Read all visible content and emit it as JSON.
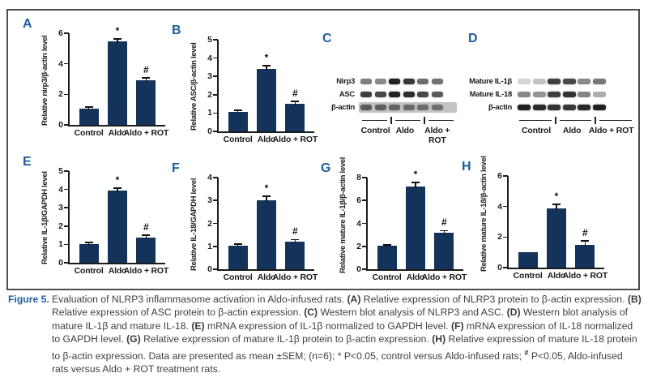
{
  "colors": {
    "bar": "#14335b",
    "panel_letter": "#1d5e9e",
    "figure_label": "#1d5e9e",
    "frame_border": "#4d4d4d"
  },
  "chart_data": [
    {
      "type": "bar",
      "panel": "A",
      "ylabel": "Relative nirp3/β-actin level",
      "categories": [
        "Control",
        "Aldo",
        "Aldo + ROT"
      ],
      "values": [
        1.05,
        5.45,
        2.9
      ],
      "errors": [
        0.08,
        0.15,
        0.15
      ],
      "sig": [
        "",
        "*",
        "#"
      ],
      "ylim": [
        0,
        6
      ],
      "yticks": [
        0,
        2,
        4,
        6
      ]
    },
    {
      "type": "bar",
      "panel": "B",
      "ylabel": "Relative ASC/β-actin level",
      "categories": [
        "Control",
        "Aldo",
        "Aldo + ROT"
      ],
      "values": [
        1.05,
        3.4,
        1.5
      ],
      "errors": [
        0.07,
        0.15,
        0.1
      ],
      "sig": [
        "",
        "*",
        "#"
      ],
      "ylim": [
        0,
        5
      ],
      "yticks": [
        0,
        1,
        2,
        3,
        4,
        5
      ]
    },
    {
      "type": "bar",
      "panel": "E",
      "ylabel": "Relative IL-1β/GAPDH level",
      "categories": [
        "Control",
        "Aldo",
        "Aldo + ROT"
      ],
      "values": [
        1.02,
        3.92,
        1.38
      ],
      "errors": [
        0.04,
        0.12,
        0.08
      ],
      "sig": [
        "",
        "*",
        "#"
      ],
      "ylim": [
        0,
        5
      ],
      "yticks": [
        0,
        1,
        2,
        3,
        4,
        5
      ]
    },
    {
      "type": "bar",
      "panel": "F",
      "ylabel": "Relative IL-18/GAPDH level",
      "categories": [
        "Control",
        "Aldo",
        "Aldo + ROT"
      ],
      "values": [
        1.03,
        3.02,
        1.22
      ],
      "errors": [
        0.04,
        0.13,
        0.05
      ],
      "sig": [
        "",
        "*",
        "#"
      ],
      "ylim": [
        0,
        4
      ],
      "yticks": [
        0,
        1,
        2,
        3,
        4
      ]
    },
    {
      "type": "bar",
      "panel": "G",
      "ylabel": "Relative mature IL-1β/β-actin level",
      "categories": [
        "Control",
        "Aldo",
        "Aldo + ROT"
      ],
      "values": [
        2.02,
        7.2,
        3.2
      ],
      "errors": [
        0.06,
        0.3,
        0.12
      ],
      "sig": [
        "",
        "*",
        "#"
      ],
      "ylim": [
        0,
        8
      ],
      "yticks": [
        0,
        2,
        4,
        6,
        8
      ]
    },
    {
      "type": "bar",
      "panel": "H",
      "ylabel": "Relative mature IL-18/β-actin level",
      "categories": [
        "Control",
        "Aldo",
        "Aldo + ROT"
      ],
      "values": [
        1.0,
        3.9,
        1.5
      ],
      "errors": [
        0,
        0.2,
        0.2
      ],
      "sig": [
        "",
        "*",
        "#"
      ],
      "ylim": [
        0,
        6
      ],
      "yticks": [
        0,
        2,
        4,
        6
      ]
    }
  ],
  "blots": [
    {
      "panel": "C",
      "rows": [
        {
          "label": "Nirp3",
          "strip": false,
          "bands": [
            0.55,
            0.5,
            0.95,
            0.85,
            0.62,
            0.6
          ]
        },
        {
          "label": "ASC",
          "strip": false,
          "bands": [
            0.82,
            0.78,
            0.95,
            0.9,
            0.78,
            0.7
          ]
        },
        {
          "label": "β-actin",
          "strip": true,
          "bands": [
            0.6,
            0.58,
            0.55,
            0.52,
            0.5,
            0.48
          ]
        }
      ],
      "groups": [
        "Control",
        "Aldo",
        "Aldo + ROT"
      ]
    },
    {
      "panel": "D",
      "rows": [
        {
          "label": "Mature IL-1β",
          "strip": false,
          "bands": [
            0.18,
            0.25,
            0.82,
            0.78,
            0.5,
            0.58
          ]
        },
        {
          "label": "Mature IL-18",
          "strip": false,
          "bands": [
            0.5,
            0.45,
            0.82,
            0.88,
            0.52,
            0.35
          ]
        },
        {
          "label": "β-actin",
          "strip": false,
          "bands": [
            0.95,
            0.9,
            0.88,
            0.85,
            0.92,
            0.95
          ]
        }
      ],
      "groups": [
        "Control",
        "Aldo",
        "Aldo + ROT"
      ]
    }
  ],
  "caption": {
    "label": "Figure 5.",
    "segments": [
      {
        "t": "Evaluation of NLRP3 inflammasome activation in Aldo-infused rats. ",
        "b": false
      },
      {
        "t": "(A)",
        "b": true
      },
      {
        "t": " Relative expression of NLRP3 protein to β-actin expression. ",
        "b": false
      },
      {
        "t": "(B)",
        "b": true
      },
      {
        "t": " Relative expression of ASC protein to β-actin expression. ",
        "b": false
      },
      {
        "t": "(C)",
        "b": true
      },
      {
        "t": " Western blot analysis of NLRP3 and ASC. ",
        "b": false
      },
      {
        "t": "(D)",
        "b": true
      },
      {
        "t": " Western blot analysis of mature IL-1β and mature IL-18. ",
        "b": false
      },
      {
        "t": "(E)",
        "b": true
      },
      {
        "t": " mRNA expression of IL-1β normalized to GAPDH level. ",
        "b": false
      },
      {
        "t": "(F)",
        "b": true
      },
      {
        "t": " mRNA expression of IL-18 normalized to GAPDH level. ",
        "b": false
      },
      {
        "t": "(G)",
        "b": true
      },
      {
        "t": " Relative expression of mature IL-1β protein to β-actin expression. ",
        "b": false
      },
      {
        "t": "(H)",
        "b": true
      },
      {
        "t": " Relative expression of mature IL-18 protein to β-actin expression. Data are presented as mean ±SEM; (n=6); * P<0.05, control versus Aldo-infused rats; ",
        "b": false
      },
      {
        "t": "#",
        "b": true,
        "sup": true
      },
      {
        "t": " P<0.05, Aldo-infused rats versus Aldo + ROT treatment rats.",
        "b": false
      }
    ]
  }
}
